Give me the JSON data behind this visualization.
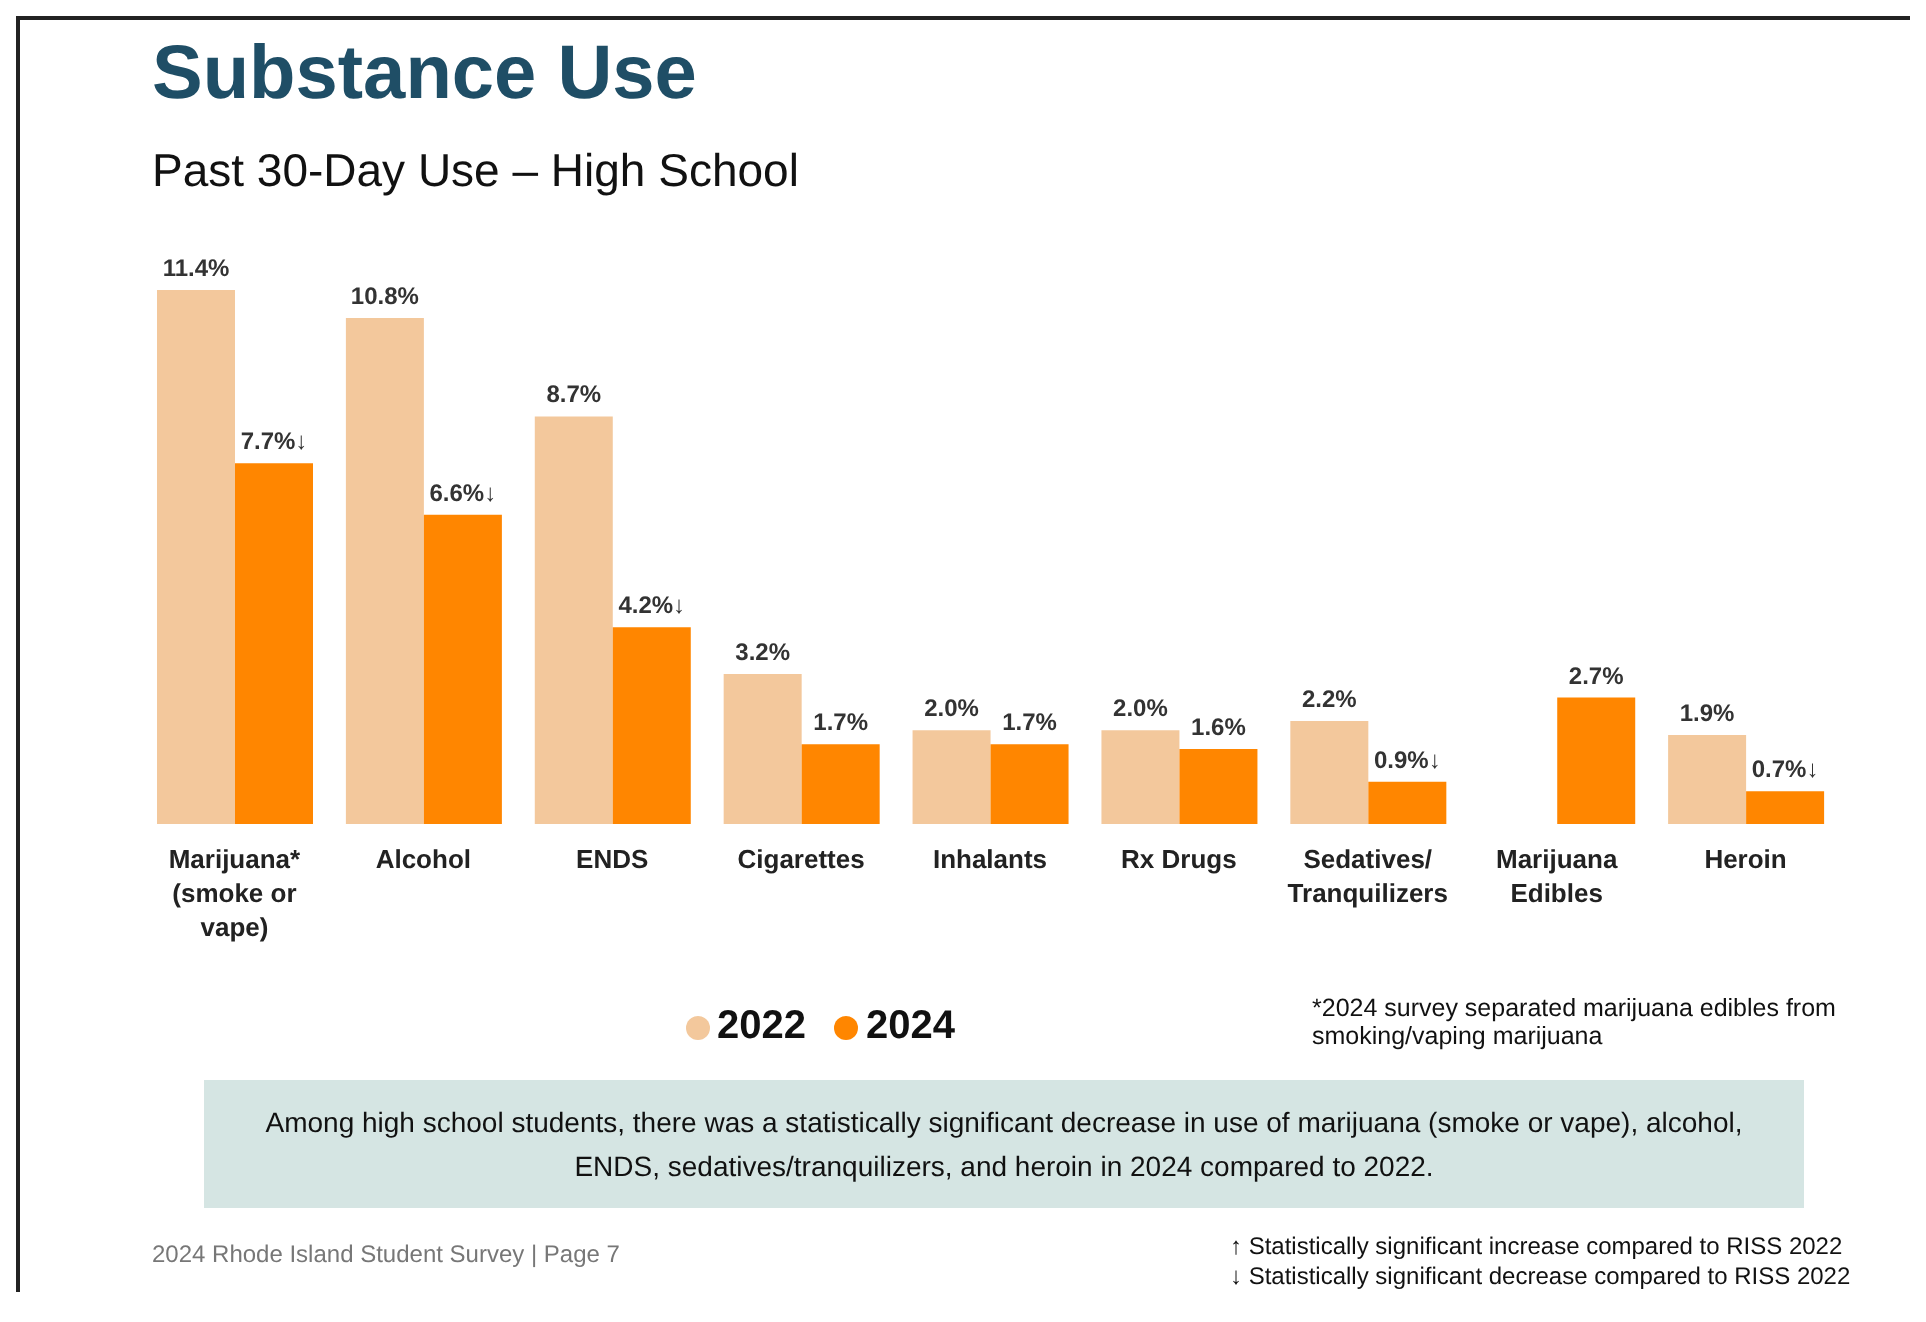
{
  "chart_data": {
    "type": "bar",
    "title": "Substance Use",
    "subtitle": "Past 30-Day Use – High School",
    "categories": [
      "Marijuana* (smoke or vape)",
      "Alcohol",
      "ENDS",
      "Cigarettes",
      "Inhalants",
      "Rx Drugs",
      "Sedatives/ Tranquilizers",
      "Marijuana Edibles",
      "Heroin"
    ],
    "series": [
      {
        "name": "2022",
        "color": "#f3c89c",
        "values": [
          11.4,
          10.8,
          8.7,
          3.2,
          2.0,
          2.0,
          2.2,
          null,
          1.9
        ],
        "value_labels": [
          "11.4%",
          "10.8%",
          "8.7%",
          "3.2%",
          "2.0%",
          "2.0%",
          "2.2%",
          null,
          "1.9%"
        ]
      },
      {
        "name": "2024",
        "color": "#ff8600",
        "values": [
          7.7,
          6.6,
          4.2,
          1.7,
          1.7,
          1.6,
          0.9,
          2.7,
          0.7
        ],
        "value_labels": [
          "7.7%↓",
          "6.6%↓",
          "4.2%↓",
          "1.7%",
          "1.7%",
          "1.6%",
          "0.9%↓",
          "2.7%",
          "0.7%↓"
        ]
      }
    ],
    "legend": "bottom",
    "annotations": [
      "*2024 survey separated marijuana edibles from smoking/vaping marijuana",
      "Among high school students, there was a statistically significant decrease in use of marijuana (smoke or vape), alcohol, ENDS, sedatives/tranquilizers, and heroin in 2024 compared to 2022.",
      "2024 Rhode Island Student Survey | Page 7",
      "↑ Statistically significant increase compared to RISS 2022",
      "↓ Statistically significant decrease compared to RISS 2022"
    ]
  }
}
